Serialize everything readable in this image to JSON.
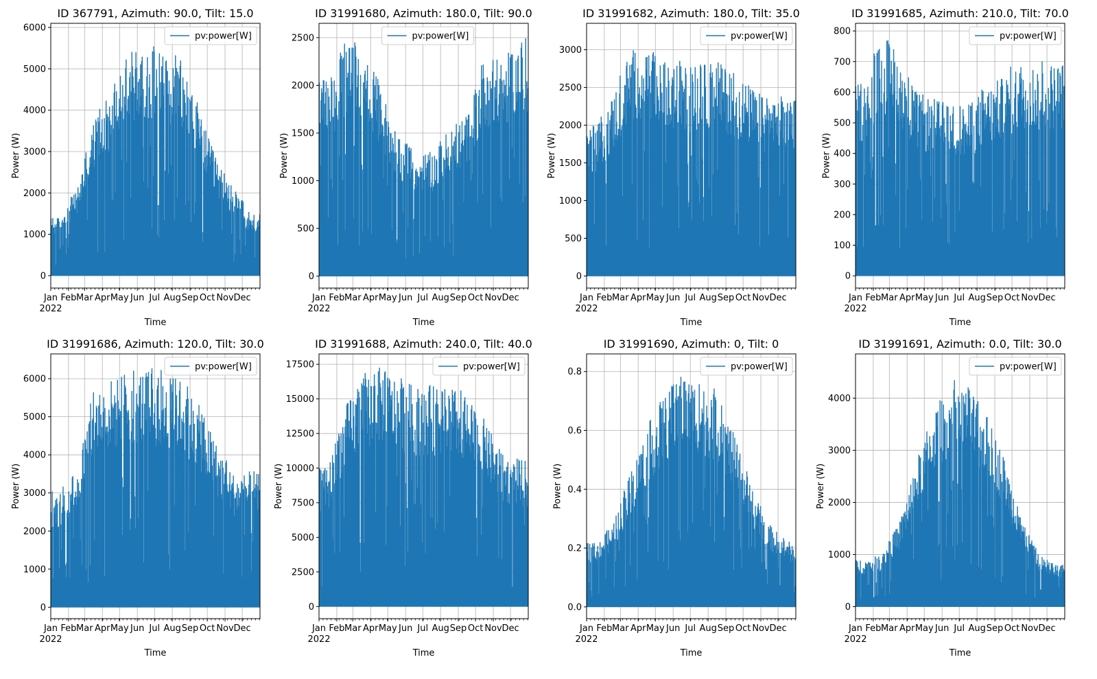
{
  "figure": {
    "background": "#ffffff",
    "series_color": "#1f77b4",
    "grid_color": "#b0b0b0"
  },
  "common": {
    "xlabel": "Time",
    "ylabel": "Power (W)",
    "legend_label": "pv:power[W]",
    "year_label": "2022",
    "month_ticks": [
      "Jan",
      "Feb",
      "Mar",
      "Apr",
      "May",
      "Jun",
      "Jul",
      "Aug",
      "Sep",
      "Oct",
      "Nov",
      "Dec"
    ]
  },
  "chart_data": [
    {
      "type": "area",
      "title": "ID 367791, Azimuth: 90.0, Tilt: 15.0",
      "xlabel": "Time",
      "ylabel": "Power (W)",
      "x_range": [
        "2022-01-01",
        "2022-12-31"
      ],
      "ylim": [
        -300,
        6100
      ],
      "yticks": [
        0,
        1000,
        2000,
        3000,
        4000,
        5000,
        6000
      ],
      "ytick_labels": [
        "0",
        "1000",
        "2000",
        "3000",
        "4000",
        "5000",
        "6000"
      ],
      "grid": true,
      "legend_position": "upper right",
      "series": [
        {
          "name": "pv:power[W]",
          "color": "#1f77b4",
          "monthly_peak_profile": {
            "months": [
              "Jan",
              "Feb",
              "Mar",
              "Apr",
              "May",
              "Jun",
              "Jul",
              "Aug",
              "Sep",
              "Oct",
              "Nov",
              "Dec"
            ],
            "values": [
              1400,
              2100,
              3800,
              4500,
              5400,
              5600,
              5500,
              5100,
              4000,
              2800,
              2100,
              1500
            ]
          }
        }
      ]
    },
    {
      "type": "area",
      "title": "ID 31991680, Azimuth: 180.0, Tilt: 90.0",
      "xlabel": "Time",
      "ylabel": "Power (W)",
      "x_range": [
        "2022-01-01",
        "2022-12-31"
      ],
      "ylim": [
        -125,
        2650
      ],
      "yticks": [
        0,
        500,
        1000,
        1500,
        2000,
        2500
      ],
      "ytick_labels": [
        "0",
        "500",
        "1000",
        "1500",
        "2000",
        "2500"
      ],
      "grid": true,
      "legend_position": "upper center",
      "series": [
        {
          "name": "pv:power[W]",
          "color": "#1f77b4",
          "monthly_peak_profile": {
            "months": [
              "Jan",
              "Feb",
              "Mar",
              "Apr",
              "May",
              "Jun",
              "Jul",
              "Aug",
              "Sep",
              "Oct",
              "Nov",
              "Dec"
            ],
            "values": [
              2050,
              2450,
              2400,
              2000,
              1500,
              1300,
              1300,
              1500,
              1700,
              2300,
              2250,
              2500
            ]
          }
        }
      ]
    },
    {
      "type": "area",
      "title": "ID 31991682, Azimuth: 180.0, Tilt: 35.0",
      "xlabel": "Time",
      "ylabel": "Power (W)",
      "x_range": [
        "2022-01-01",
        "2022-12-31"
      ],
      "ylim": [
        -160,
        3350
      ],
      "yticks": [
        0,
        500,
        1000,
        1500,
        2000,
        2500,
        3000
      ],
      "ytick_labels": [
        "0",
        "500",
        "1000",
        "1500",
        "2000",
        "2500",
        "3000"
      ],
      "grid": true,
      "legend_position": "upper right",
      "series": [
        {
          "name": "pv:power[W]",
          "color": "#1f77b4",
          "monthly_peak_profile": {
            "months": [
              "Jan",
              "Feb",
              "Mar",
              "Apr",
              "May",
              "Jun",
              "Jul",
              "Aug",
              "Sep",
              "Oct",
              "Nov",
              "Dec"
            ],
            "values": [
              2000,
              2400,
              3000,
              3050,
              2800,
              2800,
              2800,
              2850,
              2700,
              2500,
              2300,
              2350
            ]
          }
        }
      ]
    },
    {
      "type": "area",
      "title": "ID 31991685, Azimuth: 210.0, Tilt: 70.0",
      "xlabel": "Time",
      "ylabel": "Power (W)",
      "x_range": [
        "2022-01-01",
        "2022-12-31"
      ],
      "ylim": [
        -40,
        825
      ],
      "yticks": [
        0,
        100,
        200,
        300,
        400,
        500,
        600,
        700,
        800
      ],
      "ytick_labels": [
        "0",
        "100",
        "200",
        "300",
        "400",
        "500",
        "600",
        "700",
        "800"
      ],
      "grid": true,
      "legend_position": "upper right",
      "series": [
        {
          "name": "pv:power[W]",
          "color": "#1f77b4",
          "monthly_peak_profile": {
            "months": [
              "Jan",
              "Feb",
              "Mar",
              "Apr",
              "May",
              "Jun",
              "Jul",
              "Aug",
              "Sep",
              "Oct",
              "Nov",
              "Dec"
            ],
            "values": [
              640,
              780,
              730,
              600,
              580,
              560,
              560,
              620,
              650,
              700,
              690,
              700
            ]
          }
        }
      ]
    },
    {
      "type": "area",
      "title": "ID 31991686, Azimuth: 120.0, Tilt: 30.0",
      "xlabel": "Time",
      "ylabel": "Power (W)",
      "x_range": [
        "2022-01-01",
        "2022-12-31"
      ],
      "ylim": [
        -300,
        6650
      ],
      "yticks": [
        0,
        1000,
        2000,
        3000,
        4000,
        5000,
        6000
      ],
      "ytick_labels": [
        "0",
        "1000",
        "2000",
        "3000",
        "4000",
        "5000",
        "6000"
      ],
      "grid": true,
      "legend_position": "upper right",
      "series": [
        {
          "name": "pv:power[W]",
          "color": "#1f77b4",
          "monthly_peak_profile": {
            "months": [
              "Jan",
              "Feb",
              "Mar",
              "Apr",
              "May",
              "Jun",
              "Jul",
              "Aug",
              "Sep",
              "Oct",
              "Nov",
              "Dec"
            ],
            "values": [
              3000,
              3700,
              5800,
              6000,
              6300,
              6200,
              6100,
              6000,
              5300,
              4300,
              3500,
              3500
            ]
          }
        }
      ]
    },
    {
      "type": "area",
      "title": "ID 31991688, Azimuth: 240.0, Tilt: 40.0",
      "xlabel": "Time",
      "ylabel": "Power (W)",
      "x_range": [
        "2022-01-01",
        "2022-12-31"
      ],
      "ylim": [
        -875,
        18250
      ],
      "yticks": [
        0,
        2500,
        5000,
        7500,
        10000,
        12500,
        15000,
        17500
      ],
      "ytick_labels": [
        "0",
        "2500",
        "5000",
        "7500",
        "10000",
        "12500",
        "15000",
        "17500"
      ],
      "grid": true,
      "legend_position": "upper right",
      "series": [
        {
          "name": "pv:power[W]",
          "color": "#1f77b4",
          "monthly_peak_profile": {
            "months": [
              "Jan",
              "Feb",
              "Mar",
              "Apr",
              "May",
              "Jun",
              "Jul",
              "Aug",
              "Sep",
              "Oct",
              "Nov",
              "Dec"
            ],
            "values": [
              10000,
              14500,
              16500,
              17300,
              16500,
              16000,
              16000,
              16000,
              15000,
              13500,
              11000,
              10500
            ]
          }
        }
      ]
    },
    {
      "type": "area",
      "title": "ID 31991690, Azimuth: 0, Tilt: 0",
      "xlabel": "Time",
      "ylabel": "Power (W)",
      "x_range": [
        "2022-01-01",
        "2022-12-31"
      ],
      "ylim": [
        -0.04,
        0.86
      ],
      "yticks": [
        0.0,
        0.2,
        0.4,
        0.6,
        0.8
      ],
      "ytick_labels": [
        "0.0",
        "0.2",
        "0.4",
        "0.6",
        "0.8"
      ],
      "grid": true,
      "legend_position": "upper right",
      "series": [
        {
          "name": "pv:power[W]",
          "color": "#1f77b4",
          "monthly_peak_profile": {
            "months": [
              "Jan",
              "Feb",
              "Mar",
              "Apr",
              "May",
              "Jun",
              "Jul",
              "Aug",
              "Sep",
              "Oct",
              "Nov",
              "Dec"
            ],
            "values": [
              0.22,
              0.28,
              0.45,
              0.62,
              0.72,
              0.8,
              0.76,
              0.72,
              0.58,
              0.4,
              0.28,
              0.22
            ]
          }
        }
      ]
    },
    {
      "type": "area",
      "title": "ID 31991691, Azimuth: 0.0, Tilt: 30.0",
      "xlabel": "Time",
      "ylabel": "Power (W)",
      "x_range": [
        "2022-01-01",
        "2022-12-31"
      ],
      "ylim": [
        -230,
        4850
      ],
      "yticks": [
        0,
        1000,
        2000,
        3000,
        4000
      ],
      "ytick_labels": [
        "0",
        "1000",
        "2000",
        "3000",
        "4000"
      ],
      "grid": true,
      "legend_position": "upper right",
      "series": [
        {
          "name": "pv:power[W]",
          "color": "#1f77b4",
          "monthly_peak_profile": {
            "months": [
              "Jan",
              "Feb",
              "Mar",
              "Apr",
              "May",
              "Jun",
              "Jul",
              "Aug",
              "Sep",
              "Oct",
              "Nov",
              "Dec"
            ],
            "values": [
              900,
              1000,
              1600,
              2800,
              3800,
              4300,
              4200,
              3700,
              2900,
              1700,
              1000,
              800
            ]
          }
        }
      ]
    }
  ]
}
